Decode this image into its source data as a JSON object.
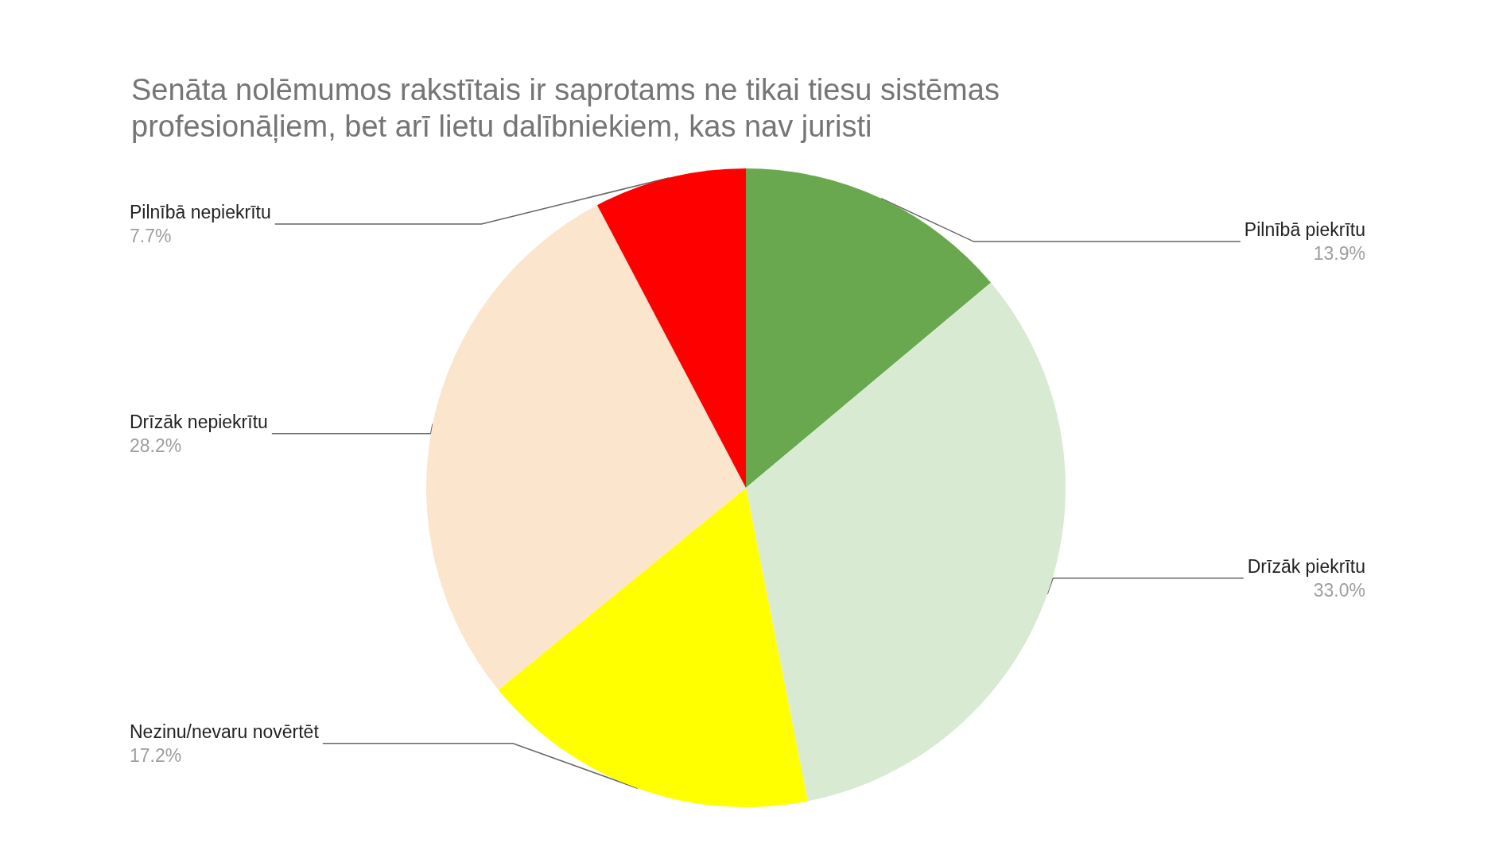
{
  "chart_data": {
    "type": "pie",
    "title": "Senāta nolēmumos rakstītais ir saprotams ne tikai tiesu sistēmas\nprofesionāļiem, bet arī lietu dalībniekiem, kas nav juristi",
    "categories": [
      "Pilnībā piekrītu",
      "Drīzāk piekrītu",
      "Nezinu/nevaru novērtēt",
      "Drīzāk nepiekrītu",
      "Pilnībā nepiekrītu"
    ],
    "values": [
      13.9,
      33.0,
      17.2,
      28.2,
      7.7
    ],
    "value_labels": [
      "13.9%",
      "33.0%",
      "17.2%",
      "28.2%",
      "7.7%"
    ],
    "colors": [
      "#6aa84f",
      "#d9ead3",
      "#ffff00",
      "#fce5cd",
      "#ff0000"
    ],
    "legend": false
  }
}
